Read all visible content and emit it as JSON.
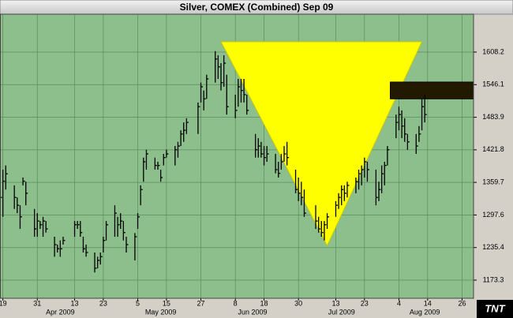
{
  "chart_data": {
    "type": "ohlc",
    "title": "Silver, COMEX (Combined) Sep 09",
    "logo": "TNT",
    "x": [
      "2009-03-18",
      "2009-03-19",
      "2009-03-20",
      "2009-03-23",
      "2009-03-24",
      "2009-03-25",
      "2009-03-26",
      "2009-03-27",
      "2009-03-30",
      "2009-03-31",
      "2009-04-01",
      "2009-04-02",
      "2009-04-03",
      "2009-04-06",
      "2009-04-07",
      "2009-04-08",
      "2009-04-09",
      "2009-04-13",
      "2009-04-14",
      "2009-04-15",
      "2009-04-16",
      "2009-04-17",
      "2009-04-20",
      "2009-04-21",
      "2009-04-22",
      "2009-04-23",
      "2009-04-24",
      "2009-04-27",
      "2009-04-28",
      "2009-04-29",
      "2009-04-30",
      "2009-05-01",
      "2009-05-04",
      "2009-05-05",
      "2009-05-06",
      "2009-05-07",
      "2009-05-08",
      "2009-05-11",
      "2009-05-12",
      "2009-05-13",
      "2009-05-14",
      "2009-05-15",
      "2009-05-18",
      "2009-05-19",
      "2009-05-20",
      "2009-05-21",
      "2009-05-22",
      "2009-05-26",
      "2009-05-27",
      "2009-05-28",
      "2009-05-29",
      "2009-06-01",
      "2009-06-02",
      "2009-06-03",
      "2009-06-04",
      "2009-06-05",
      "2009-06-08",
      "2009-06-09",
      "2009-06-10",
      "2009-06-11",
      "2009-06-12",
      "2009-06-15",
      "2009-06-16",
      "2009-06-17",
      "2009-06-18",
      "2009-06-19",
      "2009-06-22",
      "2009-06-23",
      "2009-06-24",
      "2009-06-25",
      "2009-06-26",
      "2009-06-29",
      "2009-06-30",
      "2009-07-01",
      "2009-07-02",
      "2009-07-06",
      "2009-07-07",
      "2009-07-08",
      "2009-07-09",
      "2009-07-10",
      "2009-07-13",
      "2009-07-14",
      "2009-07-15",
      "2009-07-16",
      "2009-07-17",
      "2009-07-20",
      "2009-07-21",
      "2009-07-22",
      "2009-07-23",
      "2009-07-24",
      "2009-07-27",
      "2009-07-28",
      "2009-07-29",
      "2009-07-30",
      "2009-07-31",
      "2009-08-03",
      "2009-08-04",
      "2009-08-05",
      "2009-08-06",
      "2009-08-07",
      "2009-08-10",
      "2009-08-11",
      "2009-08-12",
      "2009-08-13"
    ],
    "high": [
      1361,
      1384,
      1392,
      1354,
      1331,
      1316,
      1369,
      1361,
      1309,
      1301,
      1286,
      1294,
      1286,
      1256,
      1241,
      1249,
      1256,
      1286,
      1286,
      1286,
      1256,
      1241,
      1226,
      1218,
      1226,
      1256,
      1286,
      1316,
      1294,
      1301,
      1286,
      1256,
      1263,
      1301,
      1354,
      1407,
      1422,
      1407,
      1399,
      1384,
      1414,
      1422,
      1429,
      1437,
      1459,
      1474,
      1482,
      1512,
      1550,
      1535,
      1565,
      1610,
      1602,
      1587,
      1602,
      1565,
      1527,
      1557,
      1557,
      1557,
      1527,
      1452,
      1444,
      1437,
      1429,
      1429,
      1414,
      1399,
      1414,
      1429,
      1437,
      1384,
      1369,
      1361,
      1346,
      1316,
      1294,
      1286,
      1286,
      1301,
      1324,
      1339,
      1354,
      1354,
      1361,
      1369,
      1384,
      1392,
      1407,
      1399,
      1384,
      1361,
      1392,
      1399,
      1429,
      1489,
      1504,
      1497,
      1482,
      1452,
      1452,
      1467,
      1519,
      1527
    ],
    "low": [
      1196,
      1294,
      1346,
      1309,
      1301,
      1271,
      1354,
      1316,
      1256,
      1256,
      1271,
      1256,
      1264,
      1218,
      1226,
      1218,
      1241,
      1256,
      1271,
      1256,
      1226,
      1218,
      1188,
      1196,
      1203,
      1226,
      1249,
      1256,
      1256,
      1271,
      1249,
      1226,
      1211,
      1271,
      1316,
      1361,
      1384,
      1384,
      1384,
      1361,
      1392,
      1407,
      1392,
      1407,
      1429,
      1437,
      1452,
      1452,
      1512,
      1497,
      1519,
      1550,
      1557,
      1535,
      1542,
      1489,
      1482,
      1504,
      1512,
      1512,
      1489,
      1407,
      1407,
      1407,
      1392,
      1399,
      1377,
      1369,
      1384,
      1399,
      1392,
      1339,
      1324,
      1316,
      1294,
      1271,
      1264,
      1256,
      1249,
      1271,
      1294,
      1309,
      1316,
      1324,
      1331,
      1339,
      1346,
      1354,
      1369,
      1361,
      1316,
      1324,
      1339,
      1354,
      1392,
      1444,
      1459,
      1444,
      1437,
      1422,
      1414,
      1437,
      1459,
      1474
    ],
    "close": [
      1331,
      1362,
      1376,
      1331,
      1316,
      1294,
      1362,
      1339,
      1271,
      1286,
      1279,
      1286,
      1271,
      1241,
      1233,
      1233,
      1249,
      1279,
      1279,
      1264,
      1233,
      1226,
      1196,
      1211,
      1218,
      1249,
      1279,
      1301,
      1279,
      1286,
      1264,
      1241,
      1256,
      1294,
      1346,
      1399,
      1414,
      1392,
      1392,
      1369,
      1407,
      1414,
      1422,
      1429,
      1452,
      1459,
      1474,
      1504,
      1542,
      1519,
      1557,
      1595,
      1580,
      1550,
      1587,
      1504,
      1497,
      1542,
      1535,
      1527,
      1497,
      1422,
      1429,
      1414,
      1407,
      1414,
      1384,
      1377,
      1399,
      1414,
      1407,
      1346,
      1339,
      1331,
      1301,
      1286,
      1271,
      1264,
      1279,
      1294,
      1316,
      1331,
      1346,
      1339,
      1354,
      1361,
      1376,
      1384,
      1399,
      1384,
      1331,
      1346,
      1376,
      1392,
      1422,
      1474,
      1489,
      1467,
      1452,
      1437,
      1429,
      1452,
      1504,
      1489
    ],
    "triangle": {
      "x": [
        "2009-06-03",
        "2009-08-12",
        "2009-07-10"
      ],
      "y": [
        1628,
        1628,
        1239
      ],
      "color": "#ffff00"
    },
    "price_box": {
      "x": [
        "2009-08-01",
        "2009-08-30"
      ],
      "y": [
        1519,
        1551
      ],
      "color": "#221a00"
    },
    "xlim": [
      "2009-03-18",
      "2009-08-30"
    ],
    "ylim": [
      1138.7,
      1680.4
    ],
    "yticks": [
      1173.3,
      1235.4,
      1297.6,
      1359.7,
      1421.8,
      1483.9,
      1546.1,
      1608.2
    ],
    "xticks": [
      {
        "value": "2009-03-19",
        "label": "19"
      },
      {
        "value": "2009-03-31",
        "label": "31"
      },
      {
        "value": "2009-04-13",
        "label": "13"
      },
      {
        "value": "2009-04-23",
        "label": "23"
      },
      {
        "value": "2009-05-05",
        "label": "5"
      },
      {
        "value": "2009-05-15",
        "label": "15"
      },
      {
        "value": "2009-05-27",
        "label": "27"
      },
      {
        "value": "2009-06-08",
        "label": "8"
      },
      {
        "value": "2009-06-18",
        "label": "18"
      },
      {
        "value": "2009-06-30",
        "label": "30"
      },
      {
        "value": "2009-07-13",
        "label": "13"
      },
      {
        "value": "2009-07-23",
        "label": "23"
      },
      {
        "value": "2009-08-04",
        "label": "4"
      },
      {
        "value": "2009-08-14",
        "label": "14"
      },
      {
        "value": "2009-08-26",
        "label": "26"
      }
    ],
    "month_labels": [
      {
        "value": "2009-04-08",
        "label": "Apr 2009"
      },
      {
        "value": "2009-05-13",
        "label": "May 2009"
      },
      {
        "value": "2009-06-14",
        "label": "Jun 2009"
      },
      {
        "value": "2009-07-15",
        "label": "Jul 2009"
      },
      {
        "value": "2009-08-13",
        "label": "Aug 2009"
      }
    ],
    "grid": true,
    "color": "#000000",
    "background": "#8cbf8c"
  }
}
